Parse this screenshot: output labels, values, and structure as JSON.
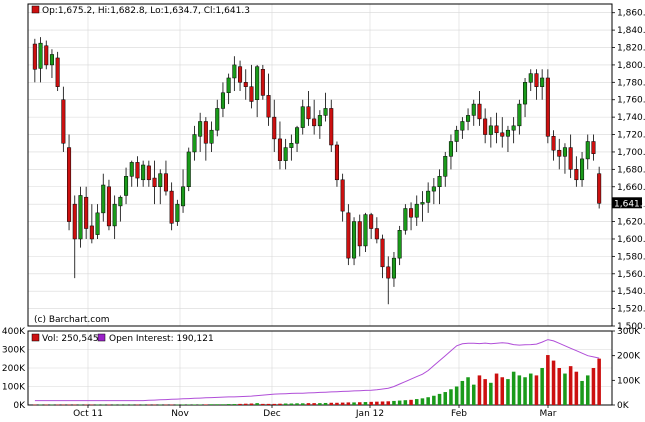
{
  "colors": {
    "up": "#1a9a1a",
    "down": "#cc1010",
    "oi_line": "#b04ed8",
    "grid": "#d8d8d8",
    "frame": "#000000",
    "legend_up": "#1a9a1a",
    "legend_down": "#cc1010",
    "oi_swatch": "#9a22c8"
  },
  "price_panel": {
    "ohlc_legend": "Op:1,675.2, Hi:1,682.8, Lo:1,634.7, Cl:1,641.3",
    "watermark": "(c) Barchart.com",
    "last_price_label": "1,641.3",
    "y_ticks": [
      "1,860.0",
      "1,840.0",
      "1,820.0",
      "1,800.0",
      "1,780.0",
      "1,760.0",
      "1,740.0",
      "1,720.0",
      "1,700.0",
      "1,680.0",
      "1,660.0",
      "1,640.0",
      "1,620.0",
      "1,600.0",
      "1,580.0",
      "1,560.0",
      "1,540.0",
      "1,520.0",
      "1,500.0"
    ]
  },
  "volume_panel": {
    "vol_legend": "Vol: 250,545",
    "oi_legend": "Open Interest: 190,121",
    "left_ticks": [
      "400K",
      "300K",
      "200K",
      "100K",
      "0K"
    ],
    "right_ticks": [
      "300K",
      "200K",
      "100K",
      "0K"
    ]
  },
  "x_labels": [
    "Oct 11",
    "Nov",
    "Dec",
    "Jan 12",
    "Feb",
    "Mar"
  ],
  "chart_data": [
    {
      "type": "candlestick",
      "ylim": [
        1500,
        1870
      ],
      "candles": [
        [
          1824,
          1830,
          1780,
          1795
        ],
        [
          1796,
          1832,
          1780,
          1825
        ],
        [
          1822,
          1828,
          1795,
          1800
        ],
        [
          1800,
          1818,
          1785,
          1812
        ],
        [
          1808,
          1815,
          1770,
          1775
        ],
        [
          1760,
          1775,
          1700,
          1710
        ],
        [
          1705,
          1720,
          1610,
          1620
        ],
        [
          1640,
          1650,
          1555,
          1600
        ],
        [
          1600,
          1660,
          1590,
          1650
        ],
        [
          1648,
          1660,
          1600,
          1612
        ],
        [
          1615,
          1640,
          1595,
          1600
        ],
        [
          1605,
          1640,
          1600,
          1630
        ],
        [
          1630,
          1675,
          1620,
          1662
        ],
        [
          1660,
          1668,
          1610,
          1615
        ],
        [
          1615,
          1650,
          1600,
          1640
        ],
        [
          1638,
          1650,
          1620,
          1648
        ],
        [
          1650,
          1682,
          1640,
          1672
        ],
        [
          1672,
          1690,
          1660,
          1688
        ],
        [
          1688,
          1695,
          1660,
          1670
        ],
        [
          1668,
          1690,
          1660,
          1685
        ],
        [
          1684,
          1690,
          1660,
          1668
        ],
        [
          1670,
          1690,
          1640,
          1660
        ],
        [
          1660,
          1680,
          1640,
          1675
        ],
        [
          1675,
          1690,
          1650,
          1655
        ],
        [
          1655,
          1665,
          1610,
          1618
        ],
        [
          1620,
          1645,
          1615,
          1640
        ],
        [
          1638,
          1680,
          1630,
          1660
        ],
        [
          1660,
          1705,
          1655,
          1700
        ],
        [
          1700,
          1730,
          1690,
          1720
        ],
        [
          1718,
          1745,
          1700,
          1735
        ],
        [
          1735,
          1740,
          1690,
          1710
        ],
        [
          1710,
          1735,
          1700,
          1725
        ],
        [
          1725,
          1760,
          1718,
          1750
        ],
        [
          1750,
          1780,
          1740,
          1768
        ],
        [
          1768,
          1790,
          1755,
          1785
        ],
        [
          1785,
          1810,
          1770,
          1800
        ],
        [
          1798,
          1805,
          1770,
          1780
        ],
        [
          1780,
          1795,
          1760,
          1775
        ],
        [
          1775,
          1800,
          1750,
          1758
        ],
        [
          1760,
          1800,
          1740,
          1798
        ],
        [
          1795,
          1800,
          1760,
          1765
        ],
        [
          1765,
          1790,
          1730,
          1740
        ],
        [
          1740,
          1760,
          1700,
          1715
        ],
        [
          1715,
          1735,
          1680,
          1690
        ],
        [
          1690,
          1715,
          1680,
          1705
        ],
        [
          1705,
          1720,
          1690,
          1710
        ],
        [
          1710,
          1730,
          1700,
          1728
        ],
        [
          1728,
          1760,
          1720,
          1752
        ],
        [
          1752,
          1770,
          1730,
          1738
        ],
        [
          1738,
          1760,
          1720,
          1730
        ],
        [
          1730,
          1748,
          1715,
          1742
        ],
        [
          1742,
          1768,
          1735,
          1750
        ],
        [
          1750,
          1760,
          1700,
          1708
        ],
        [
          1708,
          1712,
          1660,
          1668
        ],
        [
          1668,
          1675,
          1620,
          1632
        ],
        [
          1630,
          1640,
          1570,
          1578
        ],
        [
          1578,
          1625,
          1570,
          1620
        ],
        [
          1620,
          1628,
          1580,
          1592
        ],
        [
          1592,
          1630,
          1585,
          1628
        ],
        [
          1628,
          1630,
          1600,
          1612
        ],
        [
          1612,
          1625,
          1595,
          1600
        ],
        [
          1600,
          1605,
          1555,
          1568
        ],
        [
          1568,
          1580,
          1525,
          1555
        ],
        [
          1555,
          1585,
          1545,
          1578
        ],
        [
          1578,
          1615,
          1570,
          1610
        ],
        [
          1610,
          1640,
          1605,
          1635
        ],
        [
          1635,
          1642,
          1610,
          1625
        ],
        [
          1625,
          1650,
          1615,
          1640
        ],
        [
          1640,
          1655,
          1620,
          1642
        ],
        [
          1642,
          1665,
          1630,
          1655
        ],
        [
          1655,
          1670,
          1640,
          1660
        ],
        [
          1660,
          1680,
          1640,
          1672
        ],
        [
          1672,
          1700,
          1660,
          1695
        ],
        [
          1695,
          1720,
          1680,
          1712
        ],
        [
          1712,
          1730,
          1700,
          1725
        ],
        [
          1725,
          1740,
          1715,
          1735
        ],
        [
          1735,
          1750,
          1725,
          1742
        ],
        [
          1742,
          1760,
          1730,
          1755
        ],
        [
          1755,
          1770,
          1730,
          1738
        ],
        [
          1738,
          1750,
          1710,
          1720
        ],
        [
          1720,
          1740,
          1705,
          1730
        ],
        [
          1730,
          1745,
          1710,
          1722
        ],
        [
          1722,
          1740,
          1705,
          1718
        ],
        [
          1718,
          1730,
          1700,
          1725
        ],
        [
          1725,
          1740,
          1710,
          1730
        ],
        [
          1730,
          1760,
          1720,
          1755
        ],
        [
          1755,
          1785,
          1740,
          1780
        ],
        [
          1780,
          1795,
          1770,
          1790
        ],
        [
          1790,
          1795,
          1760,
          1775
        ],
        [
          1775,
          1795,
          1760,
          1785
        ],
        [
          1785,
          1795,
          1710,
          1718
        ],
        [
          1718,
          1725,
          1690,
          1702
        ],
        [
          1702,
          1715,
          1680,
          1695
        ],
        [
          1695,
          1710,
          1675,
          1705
        ],
        [
          1705,
          1720,
          1670,
          1680
        ],
        [
          1680,
          1695,
          1660,
          1668
        ],
        [
          1668,
          1700,
          1660,
          1692
        ],
        [
          1692,
          1720,
          1680,
          1712
        ],
        [
          1712,
          1720,
          1690,
          1698
        ],
        [
          1675,
          1683,
          1635,
          1641
        ]
      ]
    },
    {
      "type": "bar",
      "ylim": [
        0,
        400000
      ],
      "volume": [
        2000,
        2000,
        2000,
        2000,
        2000,
        2000,
        2000,
        2000,
        2000,
        2000,
        2000,
        2000,
        2000,
        2000,
        2000,
        2000,
        2000,
        2000,
        2000,
        2000,
        2000,
        2000,
        2000,
        2000,
        2000,
        2000,
        3000,
        3000,
        3000,
        3000,
        3000,
        4000,
        4000,
        4000,
        5000,
        5000,
        6000,
        7000,
        8000,
        10000,
        6000,
        6000,
        6000,
        7000,
        8000,
        8000,
        9000,
        9000,
        10000,
        10000,
        10000,
        11000,
        12000,
        12000,
        13000,
        14000,
        14000,
        15000,
        16000,
        17000,
        18000,
        19000,
        20000,
        22000,
        24000,
        26000,
        28000,
        32000,
        36000,
        42000,
        50000,
        60000,
        70000,
        85000,
        100000,
        130000,
        150000,
        110000,
        160000,
        140000,
        120000,
        170000,
        150000,
        140000,
        180000,
        160000,
        150000,
        170000,
        160000,
        200000,
        270000,
        240000,
        200000,
        170000,
        210000,
        180000,
        130000,
        160000,
        200000,
        250545
      ],
      "open_interest": [
        18000,
        18000,
        18000,
        18000,
        18000,
        18000,
        18000,
        18000,
        18000,
        18000,
        18000,
        18000,
        18000,
        18000,
        18000,
        18000,
        18000,
        18000,
        18000,
        18000,
        19000,
        20000,
        21000,
        22000,
        23000,
        24000,
        25000,
        26000,
        27000,
        28000,
        29000,
        30000,
        31000,
        32000,
        33000,
        33000,
        34000,
        35000,
        36000,
        38000,
        40000,
        42000,
        44000,
        45000,
        46000,
        47000,
        48000,
        48000,
        49000,
        50000,
        51000,
        52000,
        53000,
        54000,
        55000,
        56000,
        57000,
        58000,
        59000,
        60000,
        62000,
        65000,
        68000,
        75000,
        85000,
        95000,
        105000,
        115000,
        125000,
        140000,
        160000,
        180000,
        200000,
        220000,
        240000,
        248000,
        250000,
        250000,
        249000,
        251000,
        248000,
        250000,
        252000,
        250000,
        245000,
        243000,
        244000,
        245000,
        247000,
        255000,
        265000,
        260000,
        250000,
        240000,
        230000,
        220000,
        210000,
        200000,
        195000,
        190121
      ]
    }
  ]
}
